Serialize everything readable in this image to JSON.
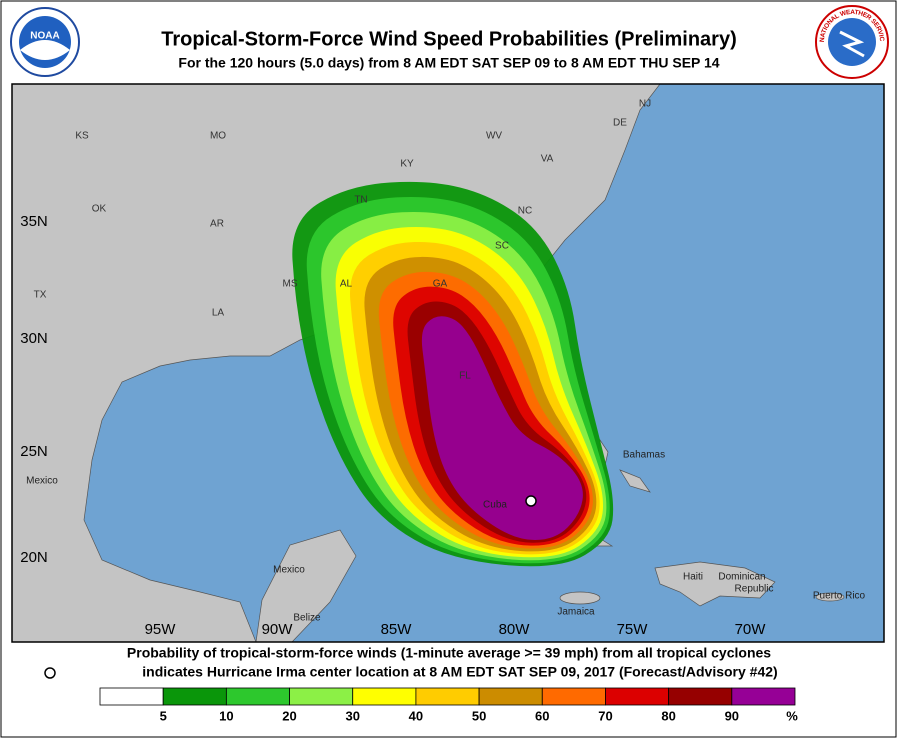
{
  "header": {
    "title": "Tropical-Storm-Force Wind Speed Probabilities (Preliminary)",
    "subtitle": "For the 120 hours (5.0 days) from 8 AM EDT SAT SEP 09 to 8 AM EDT THU SEP 14",
    "noaa_logo": "NOAA",
    "nws_logo": "NATIONAL WEATHER SERVICE"
  },
  "map": {
    "state_labels": [
      "KS",
      "MO",
      "WV",
      "VA",
      "KY",
      "OK",
      "AR",
      "TN",
      "NC",
      "SC",
      "MS",
      "AL",
      "GA",
      "TX",
      "LA",
      "FL",
      "NJ",
      "DE"
    ],
    "place_labels": [
      "Mexico",
      "Mexico",
      "Bahamas",
      "Cuba",
      "Haiti",
      "Dominican",
      "Republic",
      "Puerto Rico",
      "Jamaica",
      "Belize"
    ],
    "lat_labels": [
      "35N",
      "30N",
      "25N",
      "20N"
    ],
    "lon_labels": [
      "95W",
      "90W",
      "85W",
      "80W",
      "75W",
      "70W"
    ]
  },
  "footer": {
    "line1": "Probability of tropical-storm-force winds (1-minute average >= 39 mph) from all tropical cyclones",
    "line2": "indicates Hurricane Irma center location at 8 AM EDT SAT SEP 09, 2017 (Forecast/Advisory #42)"
  },
  "legend": {
    "colors": [
      "#ffffff",
      "#0a960a",
      "#2dc82d",
      "#8cf046",
      "#ffff00",
      "#ffcc00",
      "#cc8c00",
      "#ff6a00",
      "#dc0000",
      "#960000",
      "#960096"
    ],
    "ticks": [
      5,
      10,
      20,
      30,
      40,
      50,
      60,
      70,
      80,
      90
    ],
    "unit": "%"
  }
}
